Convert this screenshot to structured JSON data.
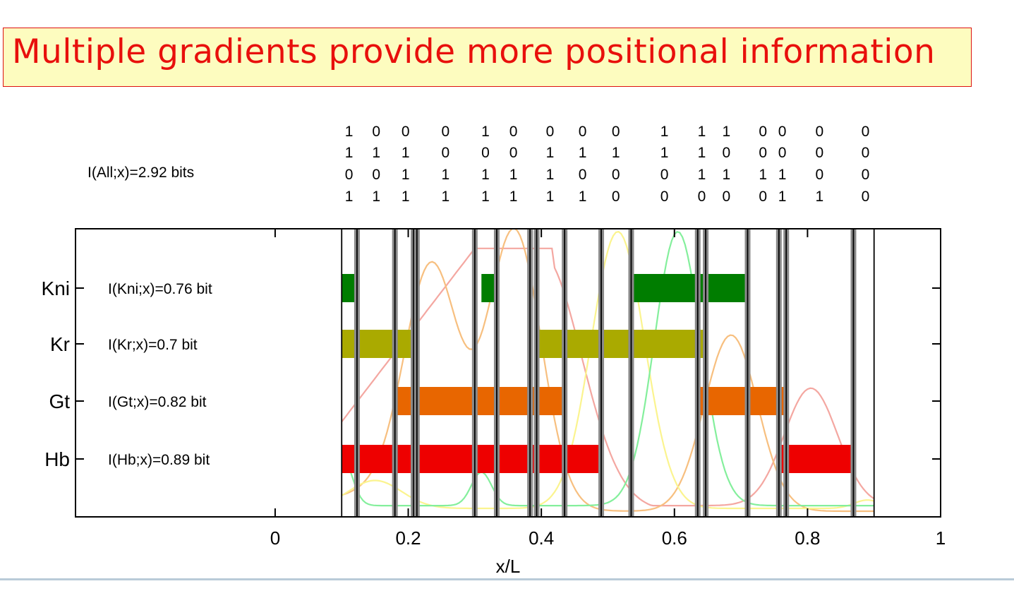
{
  "slide_title": "Multiple gradients provide more positional information",
  "chart_data": {
    "type": "bar",
    "xlabel": "x/L",
    "xlim": [
      -0.3,
      1.0
    ],
    "x_ticks": [
      0,
      0.2,
      0.4,
      0.6,
      0.8,
      1
    ],
    "x_tick_labels": [
      "0",
      "0.2",
      "0.4",
      "0.6",
      "0.8",
      "1"
    ],
    "total_info_label": "I(All;x)=2.92 bits",
    "genes": [
      {
        "name": "Kni",
        "info_label": "I(Kni;x)=0.76 bit",
        "color": "#007d00",
        "intervals": [
          [
            0.1,
            0.123
          ],
          [
            0.31,
            0.333
          ],
          [
            0.535,
            0.71
          ]
        ]
      },
      {
        "name": "Kr",
        "info_label": "I(Kr;x)=0.7 bit",
        "color": "#aaaa00",
        "intervals": [
          [
            0.1,
            0.213
          ],
          [
            0.393,
            0.647
          ]
        ]
      },
      {
        "name": "Gt",
        "info_label": "I(Gt;x)=0.82 bit",
        "color": "#e86600",
        "intervals": [
          [
            0.18,
            0.435
          ],
          [
            0.635,
            0.768
          ]
        ]
      },
      {
        "name": "Hb",
        "info_label": "I(Hb;x)=0.89 bit",
        "color": "#ee0000",
        "intervals": [
          [
            0.1,
            0.49
          ],
          [
            0.757,
            0.869
          ]
        ]
      }
    ],
    "boundaries_x": [
      0.1,
      0.123,
      0.18,
      0.208,
      0.213,
      0.3,
      0.333,
      0.383,
      0.393,
      0.435,
      0.49,
      0.535,
      0.635,
      0.647,
      0.71,
      0.757,
      0.768,
      0.869,
      0.9
    ],
    "code_columns": [
      {
        "x": 0.111,
        "bits": [
          "1",
          "1",
          "0",
          "1"
        ]
      },
      {
        "x": 0.152,
        "bits": [
          "0",
          "1",
          "0",
          "1"
        ]
      },
      {
        "x": 0.196,
        "bits": [
          "0",
          "1",
          "1",
          "1"
        ]
      },
      {
        "x": 0.256,
        "bits": [
          "0",
          "0",
          "1",
          "1"
        ]
      },
      {
        "x": 0.316,
        "bits": [
          "1",
          "0",
          "1",
          "1"
        ]
      },
      {
        "x": 0.358,
        "bits": [
          "0",
          "0",
          "1",
          "1"
        ]
      },
      {
        "x": 0.413,
        "bits": [
          "0",
          "1",
          "1",
          "1"
        ]
      },
      {
        "x": 0.462,
        "bits": [
          "0",
          "1",
          "0",
          "1"
        ]
      },
      {
        "x": 0.512,
        "bits": [
          "0",
          "1",
          "0",
          "0"
        ]
      },
      {
        "x": 0.585,
        "bits": [
          "1",
          "1",
          "0",
          "0"
        ]
      },
      {
        "x": 0.641,
        "bits": [
          "1",
          "1",
          "1",
          "0"
        ]
      },
      {
        "x": 0.678,
        "bits": [
          "1",
          "0",
          "1",
          "0"
        ]
      },
      {
        "x": 0.733,
        "bits": [
          "0",
          "0",
          "1",
          "0"
        ]
      },
      {
        "x": 0.762,
        "bits": [
          "0",
          "0",
          "1",
          "1"
        ]
      },
      {
        "x": 0.818,
        "bits": [
          "0",
          "0",
          "0",
          "1"
        ]
      },
      {
        "x": 0.887,
        "bits": [
          "0",
          "0",
          "0",
          "0"
        ]
      }
    ],
    "profile_colors": {
      "Hb": "#f4a7a1",
      "Gt": "#f7bf7f",
      "Kni": "#84ef9c",
      "Kr": "#fbf48f"
    }
  }
}
